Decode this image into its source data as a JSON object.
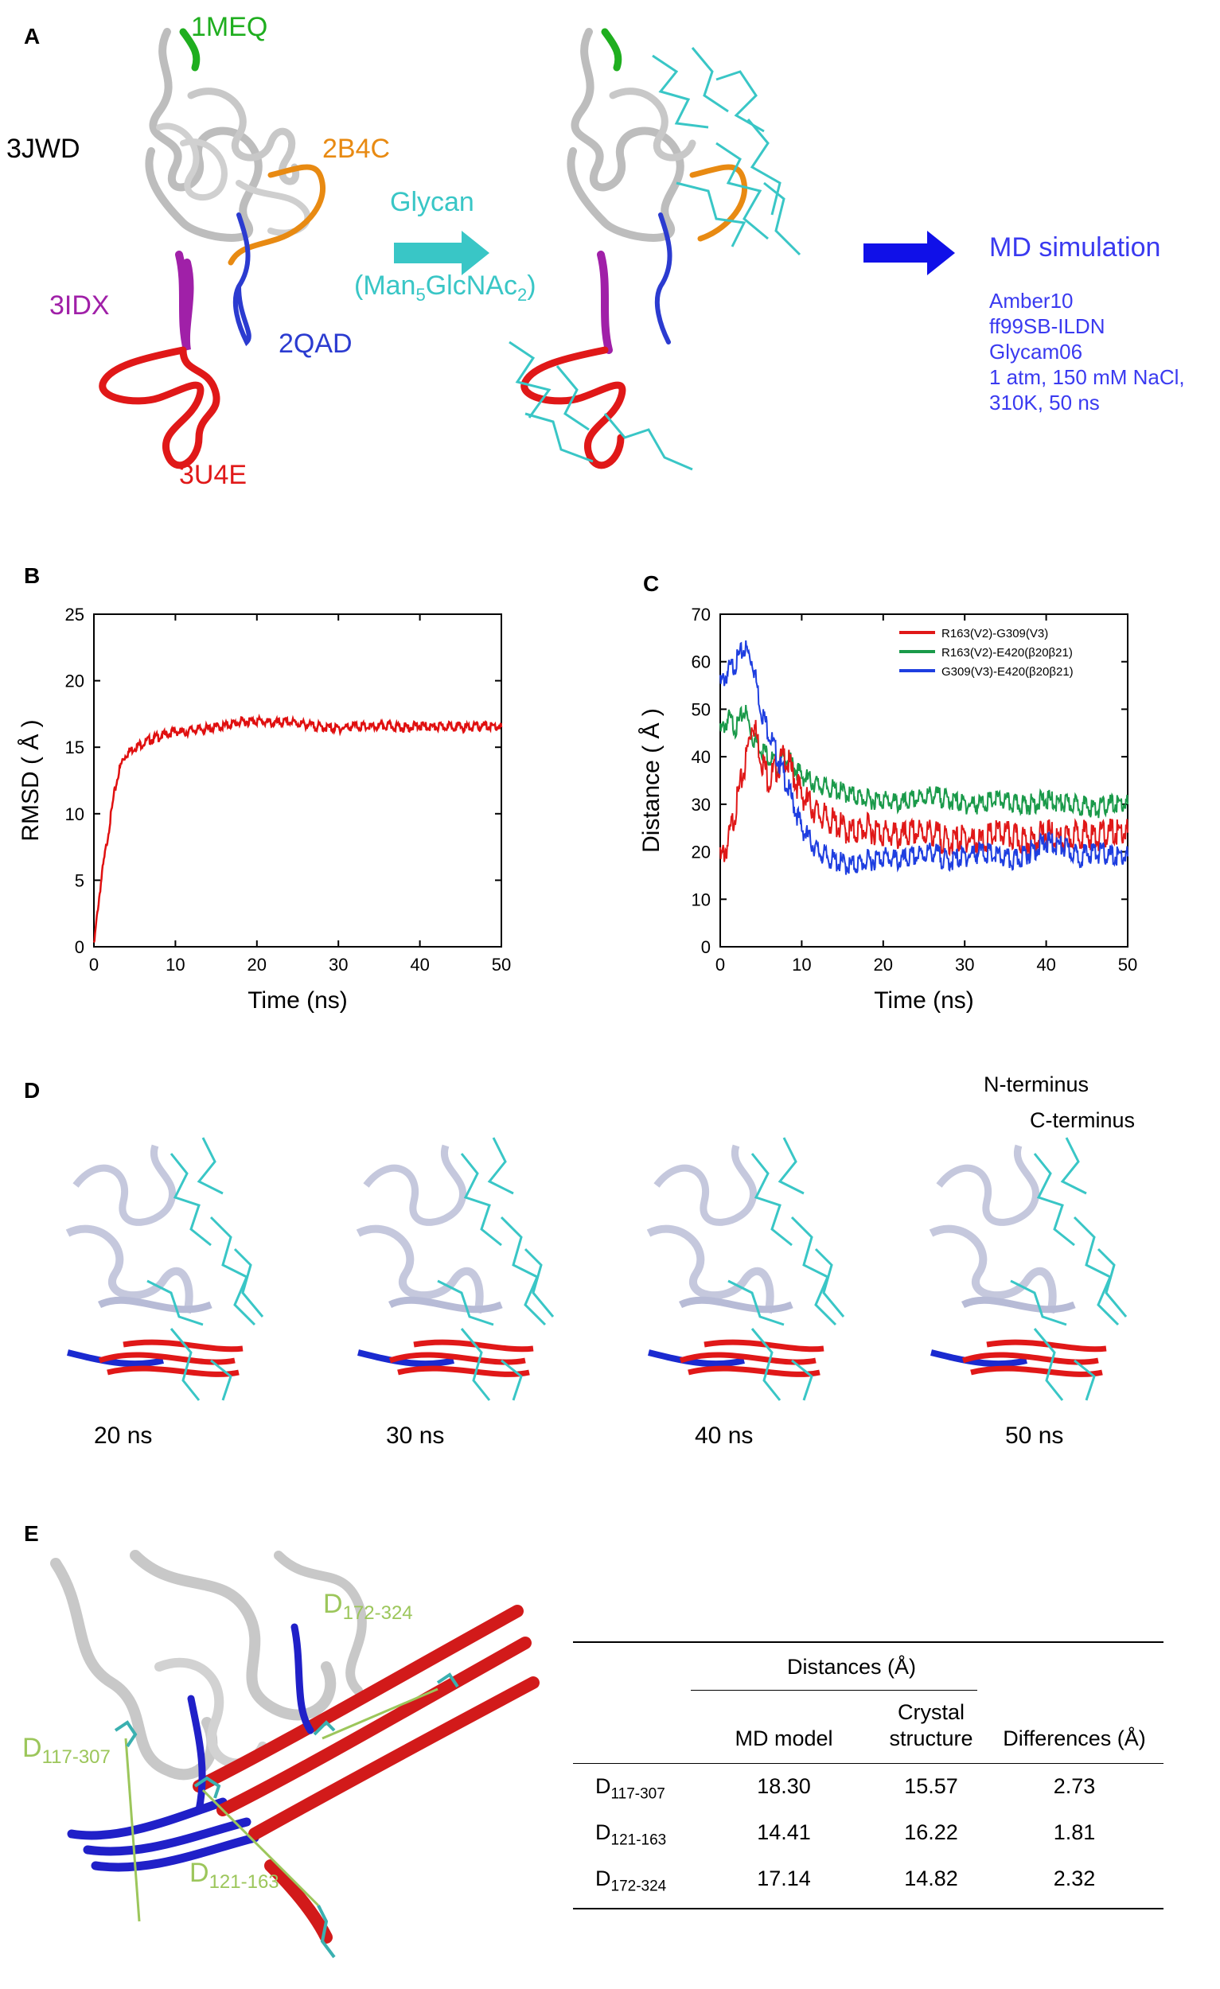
{
  "panels": {
    "A": "A",
    "B": "B",
    "C": "C",
    "D": "D",
    "E": "E"
  },
  "panelA": {
    "labels": {
      "1MEQ": "1MEQ",
      "3JWD": "3JWD",
      "2B4C": "2B4C",
      "3IDX": "3IDX",
      "2QAD": "2QAD",
      "3U4E": "3U4E"
    },
    "glycan_title": "Glycan",
    "glycan_formula": {
      "open": "(Man",
      "sub5": "5",
      "mid": "GlcNAc",
      "sub2": "2",
      "close": ")"
    },
    "md_title": "MD simulation",
    "md_params": [
      "Amber10",
      "ff99SB-ILDN",
      "Glycam06",
      "1 atm, 150 mM NaCl,",
      "310K, 50 ns"
    ],
    "colors": {
      "1MEQ": "#1fae1f",
      "2B4C": "#e88a12",
      "3IDX": "#a020a8",
      "2QAD": "#2b3bd0",
      "3U4E": "#e01818",
      "glycan": "#39c6c6",
      "md": "#3a3af0"
    }
  },
  "chart_data": [
    {
      "type": "line",
      "title": "",
      "xlabel": "Time (ns)",
      "ylabel": "RMSD ( Å )",
      "xlim": [
        0,
        50
      ],
      "ylim": [
        0,
        25
      ],
      "xticks": [
        0,
        10,
        20,
        30,
        40,
        50
      ],
      "yticks": [
        0,
        5,
        10,
        15,
        20,
        25
      ],
      "series": [
        {
          "name": "RMSD",
          "color": "#e01010",
          "x": [
            0,
            0.5,
            1,
            1.5,
            2,
            2.5,
            3,
            3.5,
            4,
            5,
            6,
            7,
            8,
            9,
            10,
            11,
            12,
            14,
            16,
            18,
            20,
            22,
            24,
            26,
            28,
            30,
            32,
            34,
            36,
            38,
            40,
            42,
            44,
            46,
            48,
            50
          ],
          "y": [
            0,
            3,
            5.5,
            7.5,
            9.5,
            11.5,
            13,
            14,
            14.5,
            15,
            15.3,
            15.6,
            15.8,
            16,
            16.2,
            16.1,
            16.3,
            16.4,
            16.6,
            16.9,
            17,
            16.8,
            16.9,
            16.7,
            16.5,
            16.4,
            16.6,
            16.5,
            16.6,
            16.5,
            16.6,
            16.5,
            16.6,
            16.5,
            16.6,
            16.5
          ]
        }
      ]
    },
    {
      "type": "line",
      "title": "",
      "xlabel": "Time (ns)",
      "ylabel": "Distance ( Å )",
      "xlim": [
        0,
        50
      ],
      "ylim": [
        0,
        70
      ],
      "xticks": [
        0,
        10,
        20,
        30,
        40,
        50
      ],
      "yticks": [
        0,
        10,
        20,
        30,
        40,
        50,
        60,
        70
      ],
      "legend": "top-right",
      "series": [
        {
          "name": "R163(V2)-G309(V3)",
          "color": "#e01818",
          "x": [
            0,
            1,
            2,
            3,
            4,
            5,
            6,
            7,
            8,
            9,
            10,
            12,
            14,
            16,
            18,
            20,
            22,
            24,
            26,
            28,
            30,
            32,
            34,
            36,
            38,
            40,
            42,
            44,
            46,
            48,
            50
          ],
          "y": [
            18,
            22,
            30,
            38,
            48,
            40,
            35,
            38,
            40,
            36,
            32,
            28,
            26,
            24,
            25,
            24,
            23,
            24,
            24,
            22,
            23,
            22,
            24,
            23,
            22,
            24,
            22,
            24,
            23,
            24,
            24
          ]
        },
        {
          "name": "R163(V2)-E420(β20β21)",
          "color": "#1a9a4a",
          "x": [
            0,
            1,
            2,
            3,
            4,
            5,
            6,
            7,
            8,
            9,
            10,
            12,
            14,
            16,
            18,
            20,
            22,
            24,
            26,
            28,
            30,
            32,
            34,
            36,
            38,
            40,
            42,
            44,
            46,
            48,
            50
          ],
          "y": [
            45,
            48,
            46,
            50,
            44,
            42,
            40,
            38,
            40,
            38,
            36,
            34,
            33,
            32,
            31,
            31,
            30,
            31,
            32,
            31,
            30,
            30,
            31,
            30,
            30,
            31,
            30,
            30,
            29,
            30,
            30
          ]
        },
        {
          "name": "G309(V3)-E420(β20β21)",
          "color": "#1e3ee0",
          "x": [
            0,
            1,
            2,
            3,
            4,
            5,
            6,
            7,
            8,
            9,
            10,
            12,
            14,
            16,
            18,
            20,
            22,
            24,
            26,
            28,
            30,
            32,
            34,
            36,
            38,
            40,
            42,
            44,
            46,
            48,
            50
          ],
          "y": [
            55,
            58,
            60,
            63,
            60,
            50,
            45,
            40,
            35,
            30,
            25,
            20,
            18,
            17,
            18,
            19,
            18,
            19,
            20,
            18,
            19,
            20,
            19,
            18,
            20,
            22,
            21,
            19,
            20,
            19,
            19
          ]
        }
      ]
    }
  ],
  "panelD": {
    "n_terminus": "N-terminus",
    "c_terminus": "C-terminus",
    "times": [
      "20 ns",
      "30 ns",
      "40 ns",
      "50 ns"
    ]
  },
  "panelE": {
    "labels": {
      "d117": "D",
      "d117sub": "117-307",
      "d121": "D",
      "d121sub": "121-163",
      "d172": "D",
      "d172sub": "172-324"
    },
    "table": {
      "group_header": "Distances (Å)",
      "col_md": "MD model",
      "col_crystal_1": "Crystal",
      "col_crystal_2": "structure",
      "col_diff": "Differences (Å)",
      "rows": [
        {
          "name": "D",
          "sub": "117-307",
          "md": "18.30",
          "crystal": "15.57",
          "diff": "2.73"
        },
        {
          "name": "D",
          "sub": "121-163",
          "md": "14.41",
          "crystal": "16.22",
          "diff": "1.81"
        },
        {
          "name": "D",
          "sub": "172-324",
          "md": "17.14",
          "crystal": "14.82",
          "diff": "2.32"
        }
      ]
    }
  }
}
